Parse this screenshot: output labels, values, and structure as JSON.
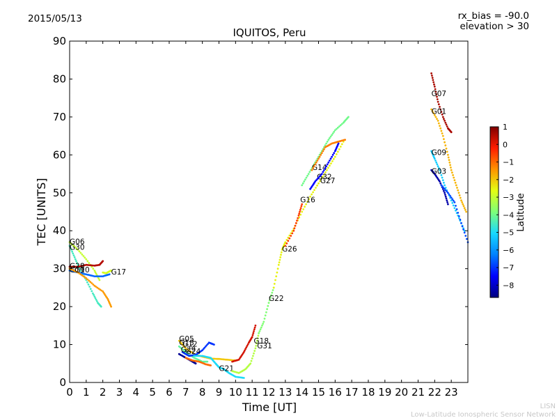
{
  "header": {
    "date": "2015/05/13",
    "title": "IQUITOS, Peru",
    "rx_bias": "rx_bias = -90.0",
    "elevation": "elevation > 30"
  },
  "footer": {
    "line1": "LISN",
    "line2": "Low-Latitude Ionospheric Sensor Network"
  },
  "chart_data": {
    "type": "scatter",
    "xlabel": "Time [UT]",
    "ylabel": "TEC [UNITS]",
    "xlim": [
      0,
      24
    ],
    "ylim": [
      0,
      90
    ],
    "x_ticks": [
      "0",
      "1",
      "2",
      "3",
      "4",
      "5",
      "6",
      "7",
      "8",
      "9",
      "10",
      "11",
      "12",
      "13",
      "14",
      "15",
      "16",
      "17",
      "18",
      "19",
      "20",
      "21",
      "22",
      "23"
    ],
    "y_ticks": [
      "0",
      "10",
      "20",
      "30",
      "40",
      "50",
      "60",
      "70",
      "80",
      "90"
    ],
    "grid": false,
    "colorbar": {
      "label": "Latitude",
      "range": [
        -8.7,
        1
      ],
      "ticks": [
        "1",
        "0",
        "−1",
        "−2",
        "−3",
        "−4",
        "−5",
        "−6",
        "−7",
        "−8"
      ],
      "colors": [
        "#00007f",
        "#0000ff",
        "#0080ff",
        "#17d8ff",
        "#7dff7a",
        "#e4ff12",
        "#ff9400",
        "#ff1d00",
        "#7f0000"
      ]
    },
    "series": [
      {
        "name": "G06",
        "lat": -3.0,
        "label_at": [
          0.0,
          36.5
        ],
        "points": [
          [
            0.0,
            37
          ],
          [
            0.5,
            35
          ],
          [
            1.0,
            32.5
          ],
          [
            1.5,
            29.5
          ],
          [
            1.8,
            27
          ]
        ]
      },
      {
        "name": "G30",
        "lat": -4.5,
        "label_at": [
          0.0,
          35.0
        ],
        "points": [
          [
            0.0,
            36
          ],
          [
            0.3,
            33
          ],
          [
            0.6,
            30
          ],
          [
            1.0,
            27
          ],
          [
            1.4,
            23.5
          ],
          [
            1.7,
            21
          ],
          [
            1.9,
            20
          ]
        ]
      },
      {
        "name": "G28",
        "lat": 0.5,
        "label_at": [
          0.0,
          30.0
        ],
        "points": [
          [
            0.0,
            30.5
          ],
          [
            0.5,
            30.5
          ],
          [
            1.0,
            31
          ],
          [
            1.5,
            30.8
          ],
          [
            1.8,
            31
          ],
          [
            2.0,
            32
          ]
        ]
      },
      {
        "name": "G19",
        "lat": -6.5,
        "label_at": [
          0.0,
          29.0
        ],
        "points": [
          [
            0.0,
            29.5
          ],
          [
            0.5,
            29
          ],
          [
            1.0,
            28.5
          ],
          [
            1.5,
            28
          ],
          [
            2.0,
            28
          ],
          [
            2.4,
            28.5
          ]
        ]
      },
      {
        "name": "G10",
        "lat": -1.5,
        "label_at": [
          0.3,
          29.0
        ],
        "points": [
          [
            0.0,
            30
          ],
          [
            0.5,
            29
          ],
          [
            1.0,
            27.5
          ],
          [
            1.5,
            25.5
          ],
          [
            2.0,
            24
          ],
          [
            2.3,
            22
          ],
          [
            2.5,
            20
          ]
        ]
      },
      {
        "name": "G17",
        "lat": -2.8,
        "label_at": [
          2.5,
          28.5
        ],
        "points": [
          [
            2.0,
            29
          ],
          [
            2.2,
            28.8
          ],
          [
            2.4,
            29.3
          ],
          [
            2.5,
            29.5
          ]
        ]
      },
      {
        "name": "G05",
        "lat": -2.0,
        "label_at": [
          6.6,
          10.8
        ],
        "points": [
          [
            6.6,
            11
          ],
          [
            7.0,
            9
          ],
          [
            7.5,
            7.5
          ],
          [
            8.0,
            6.8
          ],
          [
            8.5,
            6.3
          ],
          [
            9.0,
            6.2
          ],
          [
            9.5,
            6
          ],
          [
            10.0,
            5.8
          ]
        ]
      },
      {
        "name": "G13",
        "lat": -4.2,
        "label_at": [
          6.6,
          9.8
        ],
        "points": [
          [
            6.6,
            9.5
          ],
          [
            7.0,
            8
          ],
          [
            7.5,
            6.5
          ],
          [
            8.0,
            5.5
          ],
          [
            8.3,
            5.5
          ]
        ]
      },
      {
        "name": "G12",
        "lat": -7.0,
        "label_at": [
          6.8,
          9.5
        ],
        "points": [
          [
            6.8,
            8
          ],
          [
            7.2,
            7
          ],
          [
            7.6,
            7.3
          ],
          [
            8.0,
            8.5
          ],
          [
            8.4,
            10.5
          ],
          [
            8.7,
            10
          ]
        ]
      },
      {
        "name": "G29",
        "lat": -8.5,
        "label_at": [
          6.7,
          8.0
        ],
        "points": [
          [
            6.6,
            7.5
          ],
          [
            7.0,
            6.5
          ],
          [
            7.4,
            5.5
          ],
          [
            7.6,
            5.0
          ]
        ]
      },
      {
        "name": "G24",
        "lat": -1.0,
        "label_at": [
          7.0,
          7.5
        ],
        "points": [
          [
            7.0,
            6.5
          ],
          [
            7.4,
            5.8
          ],
          [
            7.8,
            5.5
          ],
          [
            8.2,
            4.8
          ],
          [
            8.5,
            4.5
          ]
        ]
      },
      {
        "name": "G21",
        "lat": -5.0,
        "label_at": [
          9.0,
          3.0
        ],
        "points": [
          [
            7.5,
            7
          ],
          [
            8.0,
            7
          ],
          [
            8.5,
            6.5
          ],
          [
            8.8,
            5
          ],
          [
            9.0,
            4
          ],
          [
            9.3,
            3.5
          ],
          [
            9.6,
            2.5
          ],
          [
            10.0,
            1.5
          ],
          [
            10.5,
            1.2
          ]
        ]
      },
      {
        "name": "G18",
        "lat": -3.2,
        "label_at": [
          11.1,
          10.3
        ],
        "points": [
          [
            9.8,
            3
          ],
          [
            10.2,
            2.5
          ],
          [
            10.6,
            3.5
          ],
          [
            10.9,
            5
          ],
          [
            11.2,
            9
          ],
          [
            11.4,
            13
          ]
        ]
      },
      {
        "name": "G31",
        "lat": 0.2,
        "label_at": [
          11.3,
          9.0
        ],
        "points": [
          [
            9.8,
            5.5
          ],
          [
            10.2,
            6
          ],
          [
            10.5,
            8
          ],
          [
            10.8,
            10.5
          ],
          [
            11.0,
            12
          ],
          [
            11.2,
            15
          ]
        ]
      },
      {
        "name": "G22",
        "lat": -3.8,
        "label_at": [
          12.0,
          21.5
        ],
        "points": [
          [
            11.4,
            13
          ],
          [
            11.7,
            16
          ],
          [
            12.0,
            21
          ],
          [
            12.3,
            25
          ]
        ]
      },
      {
        "name": "G26",
        "lat": -2.5,
        "label_at": [
          12.8,
          34.5
        ],
        "points": [
          [
            12.3,
            25
          ],
          [
            12.6,
            31
          ],
          [
            12.8,
            35
          ],
          [
            13.0,
            37
          ],
          [
            13.5,
            40.5
          ],
          [
            14.0,
            45
          ],
          [
            14.5,
            49
          ],
          [
            15.0,
            52.5
          ],
          [
            15.5,
            56
          ],
          [
            16.0,
            59.5
          ],
          [
            16.5,
            63.5
          ]
        ]
      },
      {
        "name": "G16",
        "lat": -0.5,
        "label_at": [
          13.9,
          47.5
        ],
        "points": [
          [
            13.0,
            36
          ],
          [
            13.5,
            40
          ],
          [
            13.8,
            44
          ],
          [
            14.0,
            47
          ]
        ]
      },
      {
        "name": "G14",
        "lat": -4.0,
        "label_at": [
          14.6,
          56.0
        ],
        "points": [
          [
            14.0,
            52
          ],
          [
            14.4,
            55
          ],
          [
            14.8,
            58
          ],
          [
            15.2,
            61
          ],
          [
            15.6,
            64
          ],
          [
            16.0,
            66.5
          ],
          [
            16.5,
            68.5
          ],
          [
            16.8,
            70
          ]
        ]
      },
      {
        "name": "G32",
        "lat": -1.2,
        "label_at": [
          14.9,
          53.5
        ],
        "points": [
          [
            14.6,
            56
          ],
          [
            15.0,
            59
          ],
          [
            15.4,
            62
          ],
          [
            15.8,
            63
          ],
          [
            16.2,
            63.5
          ],
          [
            16.6,
            64
          ]
        ]
      },
      {
        "name": "G27",
        "lat": -7.5,
        "label_at": [
          15.1,
          52.5
        ],
        "points": [
          [
            14.5,
            51
          ],
          [
            14.8,
            53
          ],
          [
            15.2,
            55
          ],
          [
            15.6,
            58
          ],
          [
            16.0,
            61
          ],
          [
            16.2,
            63
          ]
        ]
      },
      {
        "name": "G07",
        "lat": 0.6,
        "label_at": [
          21.8,
          75.5
        ],
        "points": [
          [
            21.8,
            81.5
          ],
          [
            22.0,
            78
          ],
          [
            22.2,
            74
          ],
          [
            22.5,
            70
          ],
          [
            22.8,
            67
          ],
          [
            23.0,
            66
          ]
        ]
      },
      {
        "name": "G01",
        "lat": -1.8,
        "label_at": [
          21.8,
          70.8
        ],
        "points": [
          [
            21.8,
            72
          ],
          [
            22.2,
            69
          ],
          [
            22.5,
            65
          ],
          [
            22.8,
            60
          ],
          [
            23.0,
            56
          ],
          [
            23.3,
            52
          ],
          [
            23.6,
            48
          ],
          [
            23.9,
            45
          ]
        ]
      },
      {
        "name": "G09",
        "lat": -5.2,
        "label_at": [
          21.8,
          60.0
        ],
        "points": [
          [
            21.8,
            61
          ],
          [
            22.0,
            59
          ],
          [
            22.3,
            56
          ],
          [
            22.6,
            52
          ],
          [
            23.0,
            48
          ],
          [
            23.4,
            44
          ],
          [
            23.8,
            40
          ]
        ]
      },
      {
        "name": "G03",
        "lat": -8.3,
        "label_at": [
          21.8,
          55.0
        ],
        "points": [
          [
            21.8,
            56
          ],
          [
            22.0,
            55
          ],
          [
            22.3,
            53
          ],
          [
            22.6,
            50
          ],
          [
            22.8,
            47
          ]
        ]
      },
      {
        "name": "",
        "lat": -6.8,
        "label_at": null,
        "points": [
          [
            22.4,
            52
          ],
          [
            22.8,
            50
          ],
          [
            23.2,
            47.5
          ],
          [
            23.6,
            42
          ],
          [
            24.0,
            37
          ]
        ]
      }
    ]
  }
}
